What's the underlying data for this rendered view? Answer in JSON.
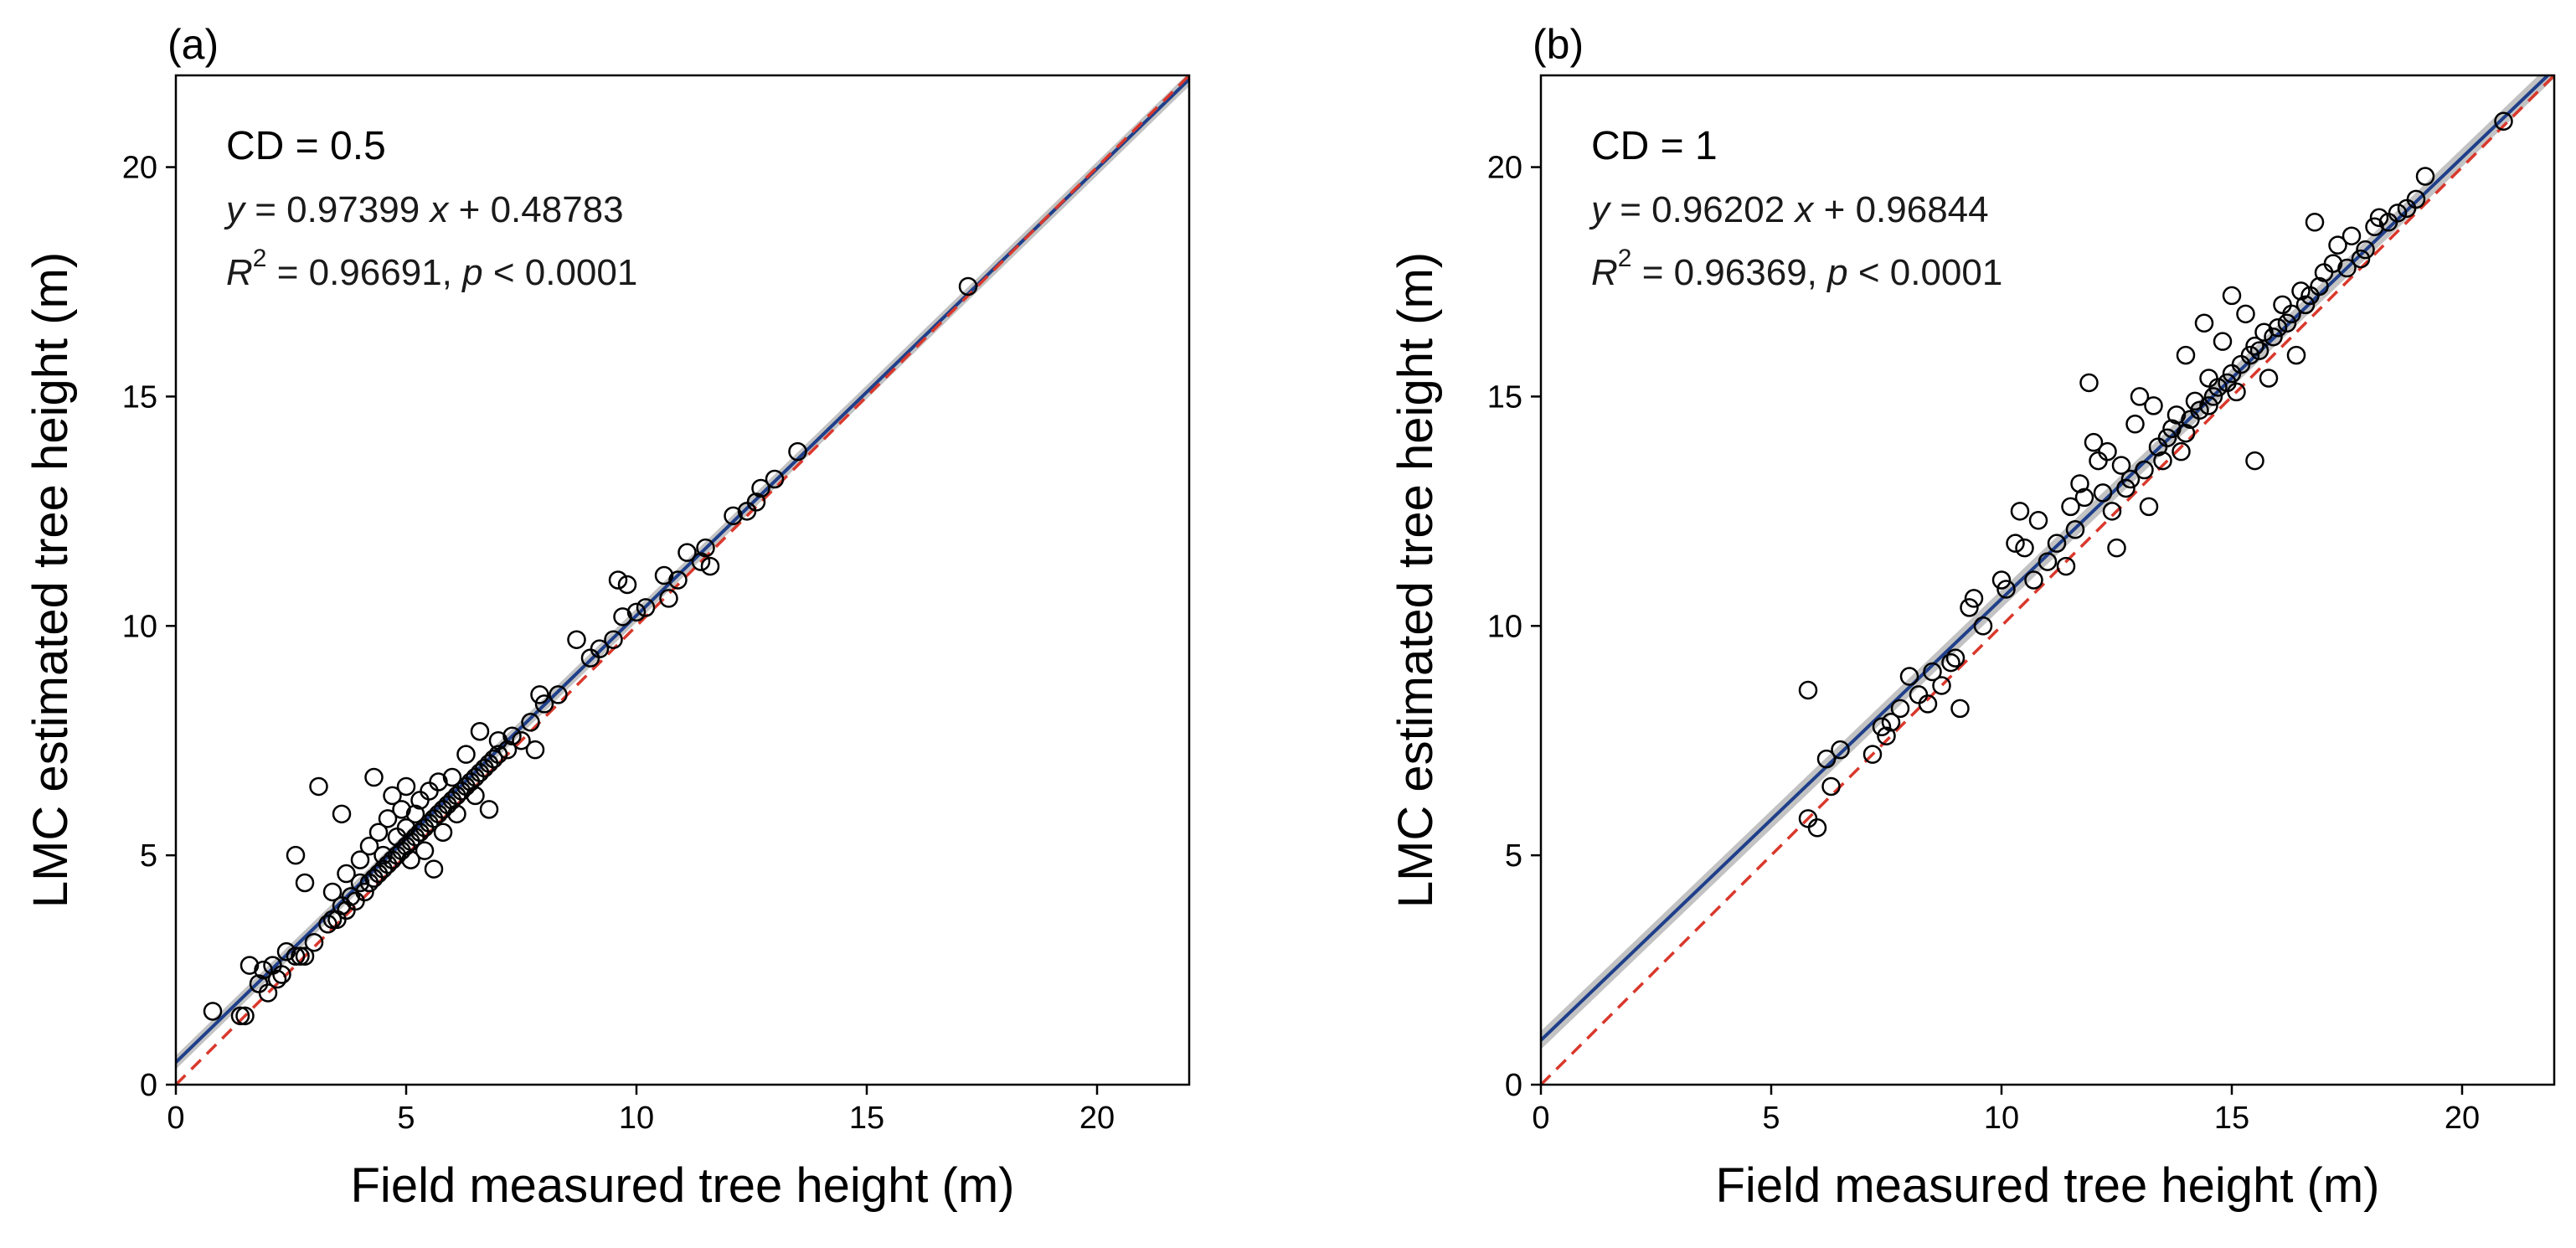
{
  "chart_data": [
    {
      "type": "scatter",
      "panel_label": "(a)",
      "xlabel": "Field measured tree height (m)",
      "ylabel": "LMC estimated tree height (m)",
      "xlim": [
        0,
        22
      ],
      "ylim": [
        0,
        22
      ],
      "xticks": [
        "0",
        "5",
        "10",
        "15",
        "20"
      ],
      "yticks": [
        "0",
        "5",
        "10",
        "15",
        "20"
      ],
      "annotations": {
        "cd": "CD = 0.5",
        "eq_y": "y",
        "eq_mid": " = 0.97399 ",
        "eq_x": "x",
        "eq_tail": " + 0.48783",
        "r_R": "R",
        "r_sup": "2",
        "r_mid": " = 0.96691,  ",
        "r_p": "p",
        "r_tail": "  < 0.0001"
      },
      "regression": {
        "slope": 0.97399,
        "intercept": 0.48783,
        "ci_halfwidth": 0.15,
        "color": "#1f3f8a"
      },
      "identity_line": {
        "color": "#d9382c"
      },
      "series": [
        {
          "name": "observations",
          "points": [
            [
              0.8,
              1.6
            ],
            [
              1.4,
              1.5
            ],
            [
              1.5,
              1.5
            ],
            [
              1.6,
              2.6
            ],
            [
              1.8,
              2.2
            ],
            [
              1.9,
              2.5
            ],
            [
              2.0,
              2.0
            ],
            [
              2.1,
              2.6
            ],
            [
              2.2,
              2.3
            ],
            [
              2.3,
              2.4
            ],
            [
              2.4,
              2.9
            ],
            [
              2.6,
              2.8
            ],
            [
              2.6,
              5.0
            ],
            [
              2.7,
              2.8
            ],
            [
              2.8,
              2.8
            ],
            [
              2.8,
              4.4
            ],
            [
              3.0,
              3.1
            ],
            [
              3.1,
              6.5
            ],
            [
              3.3,
              3.5
            ],
            [
              3.4,
              3.6
            ],
            [
              3.4,
              4.2
            ],
            [
              3.5,
              3.6
            ],
            [
              3.6,
              3.9
            ],
            [
              3.6,
              5.9
            ],
            [
              3.7,
              3.8
            ],
            [
              3.7,
              4.6
            ],
            [
              3.8,
              4.1
            ],
            [
              3.9,
              4.0
            ],
            [
              4.0,
              4.4
            ],
            [
              4.0,
              4.9
            ],
            [
              4.1,
              4.2
            ],
            [
              4.2,
              4.4
            ],
            [
              4.2,
              5.2
            ],
            [
              4.3,
              4.5
            ],
            [
              4.3,
              6.7
            ],
            [
              4.4,
              4.6
            ],
            [
              4.4,
              5.5
            ],
            [
              4.5,
              4.7
            ],
            [
              4.5,
              5.0
            ],
            [
              4.6,
              4.8
            ],
            [
              4.6,
              5.8
            ],
            [
              4.7,
              4.9
            ],
            [
              4.7,
              6.3
            ],
            [
              4.8,
              5.0
            ],
            [
              4.8,
              5.4
            ],
            [
              4.9,
              5.1
            ],
            [
              4.9,
              6.0
            ],
            [
              5.0,
              5.2
            ],
            [
              5.0,
              5.6
            ],
            [
              5.0,
              6.5
            ],
            [
              5.1,
              5.3
            ],
            [
              5.1,
              4.9
            ],
            [
              5.2,
              5.4
            ],
            [
              5.2,
              5.9
            ],
            [
              5.3,
              5.5
            ],
            [
              5.3,
              6.2
            ],
            [
              5.4,
              5.6
            ],
            [
              5.4,
              5.1
            ],
            [
              5.5,
              5.7
            ],
            [
              5.5,
              6.4
            ],
            [
              5.6,
              5.8
            ],
            [
              5.6,
              4.7
            ],
            [
              5.7,
              5.9
            ],
            [
              5.7,
              6.6
            ],
            [
              5.8,
              6.0
            ],
            [
              5.8,
              5.5
            ],
            [
              5.9,
              6.1
            ],
            [
              6.0,
              6.2
            ],
            [
              6.0,
              6.7
            ],
            [
              6.1,
              6.3
            ],
            [
              6.1,
              5.9
            ],
            [
              6.2,
              6.4
            ],
            [
              6.3,
              6.5
            ],
            [
              6.3,
              7.2
            ],
            [
              6.4,
              6.6
            ],
            [
              6.5,
              6.7
            ],
            [
              6.5,
              6.3
            ],
            [
              6.6,
              6.8
            ],
            [
              6.6,
              7.7
            ],
            [
              6.7,
              6.9
            ],
            [
              6.8,
              7.0
            ],
            [
              6.8,
              6.0
            ],
            [
              6.9,
              7.1
            ],
            [
              7.0,
              7.2
            ],
            [
              7.0,
              7.5
            ],
            [
              7.2,
              7.3
            ],
            [
              7.3,
              7.6
            ],
            [
              7.5,
              7.5
            ],
            [
              7.7,
              7.9
            ],
            [
              7.8,
              7.3
            ],
            [
              7.9,
              8.5
            ],
            [
              8.0,
              8.3
            ],
            [
              8.3,
              8.5
            ],
            [
              8.7,
              9.7
            ],
            [
              9.0,
              9.3
            ],
            [
              9.2,
              9.5
            ],
            [
              9.5,
              9.7
            ],
            [
              9.6,
              11.0
            ],
            [
              9.7,
              10.2
            ],
            [
              9.8,
              10.9
            ],
            [
              10.0,
              10.3
            ],
            [
              10.2,
              10.4
            ],
            [
              10.6,
              11.1
            ],
            [
              10.7,
              10.6
            ],
            [
              10.9,
              11.0
            ],
            [
              11.1,
              11.6
            ],
            [
              11.4,
              11.4
            ],
            [
              11.5,
              11.7
            ],
            [
              11.6,
              11.3
            ],
            [
              12.1,
              12.4
            ],
            [
              12.4,
              12.5
            ],
            [
              12.6,
              12.7
            ],
            [
              12.7,
              13.0
            ],
            [
              13.0,
              13.2
            ],
            [
              13.5,
              13.8
            ],
            [
              17.2,
              17.4
            ]
          ]
        }
      ]
    },
    {
      "type": "scatter",
      "panel_label": "(b)",
      "xlabel": "Field measured tree height (m)",
      "ylabel": "LMC estimated tree height (m)",
      "xlim": [
        0,
        22
      ],
      "ylim": [
        0,
        22
      ],
      "xticks": [
        "0",
        "5",
        "10",
        "15",
        "20"
      ],
      "yticks": [
        "0",
        "5",
        "10",
        "15",
        "20"
      ],
      "annotations": {
        "cd": "CD = 1",
        "eq_y": "y",
        "eq_mid": " = 0.96202 ",
        "eq_x": "x",
        "eq_tail": " + 0.96844",
        "r_R": "R",
        "r_sup": "2",
        "r_mid": " = 0.96369,  ",
        "r_p": "p",
        "r_tail": "  < 0.0001"
      },
      "regression": {
        "slope": 0.96202,
        "intercept": 0.96844,
        "ci_halfwidth": 0.2,
        "color": "#1f3f8a"
      },
      "identity_line": {
        "color": "#d9382c"
      },
      "series": [
        {
          "name": "observations",
          "points": [
            [
              5.8,
              8.6
            ],
            [
              5.8,
              5.8
            ],
            [
              6.0,
              5.6
            ],
            [
              6.2,
              7.1
            ],
            [
              6.3,
              6.5
            ],
            [
              6.5,
              7.3
            ],
            [
              7.2,
              7.2
            ],
            [
              7.4,
              7.8
            ],
            [
              7.5,
              7.6
            ],
            [
              7.6,
              7.9
            ],
            [
              7.8,
              8.2
            ],
            [
              8.0,
              8.9
            ],
            [
              8.2,
              8.5
            ],
            [
              8.4,
              8.3
            ],
            [
              8.5,
              9.0
            ],
            [
              8.7,
              8.7
            ],
            [
              8.9,
              9.2
            ],
            [
              9.0,
              9.3
            ],
            [
              9.1,
              8.2
            ],
            [
              9.3,
              10.4
            ],
            [
              9.4,
              10.6
            ],
            [
              9.6,
              10.0
            ],
            [
              10.0,
              11.0
            ],
            [
              10.1,
              10.8
            ],
            [
              10.3,
              11.8
            ],
            [
              10.4,
              12.5
            ],
            [
              10.5,
              11.7
            ],
            [
              10.7,
              11.0
            ],
            [
              10.8,
              12.3
            ],
            [
              11.0,
              11.4
            ],
            [
              11.2,
              11.8
            ],
            [
              11.4,
              11.3
            ],
            [
              11.5,
              12.6
            ],
            [
              11.6,
              12.1
            ],
            [
              11.7,
              13.1
            ],
            [
              11.8,
              12.8
            ],
            [
              11.9,
              15.3
            ],
            [
              12.0,
              14.0
            ],
            [
              12.1,
              13.6
            ],
            [
              12.2,
              12.9
            ],
            [
              12.3,
              13.8
            ],
            [
              12.4,
              12.5
            ],
            [
              12.5,
              11.7
            ],
            [
              12.6,
              13.5
            ],
            [
              12.7,
              13.0
            ],
            [
              12.8,
              13.2
            ],
            [
              12.9,
              14.4
            ],
            [
              13.0,
              15.0
            ],
            [
              13.1,
              13.4
            ],
            [
              13.2,
              12.6
            ],
            [
              13.3,
              14.8
            ],
            [
              13.4,
              13.9
            ],
            [
              13.5,
              13.6
            ],
            [
              13.6,
              14.1
            ],
            [
              13.7,
              14.3
            ],
            [
              13.8,
              14.6
            ],
            [
              13.9,
              13.8
            ],
            [
              14.0,
              14.2
            ],
            [
              14.0,
              15.9
            ],
            [
              14.1,
              14.5
            ],
            [
              14.2,
              14.9
            ],
            [
              14.3,
              14.7
            ],
            [
              14.4,
              16.6
            ],
            [
              14.5,
              14.8
            ],
            [
              14.5,
              15.4
            ],
            [
              14.6,
              15.0
            ],
            [
              14.7,
              15.2
            ],
            [
              14.8,
              16.2
            ],
            [
              14.9,
              15.3
            ],
            [
              15.0,
              15.5
            ],
            [
              15.0,
              17.2
            ],
            [
              15.1,
              15.1
            ],
            [
              15.2,
              15.7
            ],
            [
              15.3,
              16.8
            ],
            [
              15.4,
              15.9
            ],
            [
              15.5,
              13.6
            ],
            [
              15.5,
              16.1
            ],
            [
              15.6,
              16.0
            ],
            [
              15.7,
              16.4
            ],
            [
              15.8,
              15.4
            ],
            [
              15.9,
              16.3
            ],
            [
              16.0,
              16.5
            ],
            [
              16.1,
              17.0
            ],
            [
              16.2,
              16.6
            ],
            [
              16.3,
              16.8
            ],
            [
              16.4,
              15.9
            ],
            [
              16.5,
              17.3
            ],
            [
              16.6,
              17.0
            ],
            [
              16.7,
              17.2
            ],
            [
              16.8,
              18.8
            ],
            [
              16.9,
              17.4
            ],
            [
              17.0,
              17.7
            ],
            [
              17.2,
              17.9
            ],
            [
              17.3,
              18.3
            ],
            [
              17.5,
              17.8
            ],
            [
              17.6,
              18.5
            ],
            [
              17.8,
              18.0
            ],
            [
              17.9,
              18.2
            ],
            [
              18.1,
              18.7
            ],
            [
              18.2,
              18.9
            ],
            [
              18.4,
              18.8
            ],
            [
              18.6,
              19.0
            ],
            [
              18.8,
              19.1
            ],
            [
              19.0,
              19.3
            ],
            [
              19.2,
              19.8
            ],
            [
              20.9,
              21.0
            ]
          ]
        }
      ]
    }
  ]
}
